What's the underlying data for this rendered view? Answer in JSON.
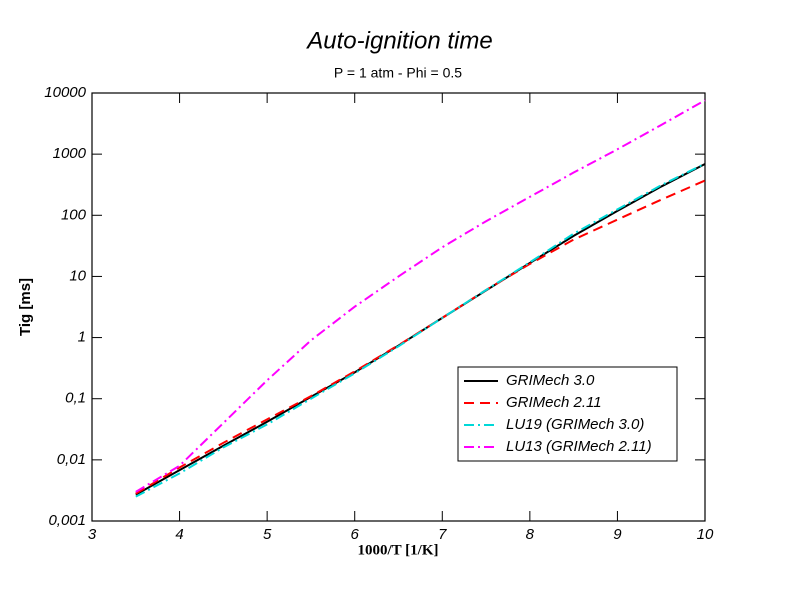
{
  "chart_data": {
    "type": "line",
    "title": "Auto-ignition time",
    "subtitle": "P = 1 atm - Phi = 0.5",
    "x_label": "1000/T [1/K]",
    "y_label": "Tig [ms]",
    "log_y": true,
    "legend": "lower right",
    "x": [
      3.5,
      4,
      4.5,
      5,
      5.5,
      6,
      6.5,
      7,
      7.5,
      8,
      8.5,
      9,
      9.5,
      10
    ],
    "series": [
      {
        "name": "GRIMech 3.0",
        "color": "#000000",
        "style": "solid",
        "values": [
          0.0027,
          0.0068,
          0.017,
          0.042,
          0.107,
          0.27,
          0.74,
          2.1,
          5.9,
          16.6,
          46,
          118,
          295,
          690
        ]
      },
      {
        "name": "GRIMech 2.11",
        "color": "#ff0000",
        "style": "dashed",
        "values": [
          0.0028,
          0.0075,
          0.019,
          0.046,
          0.11,
          0.28,
          0.75,
          2.1,
          6,
          16,
          40,
          85,
          180,
          370
        ]
      },
      {
        "name": "LU19 (GRIMech 3.0)",
        "color": "#00d8d8",
        "style": "dashdot",
        "values": [
          0.0025,
          0.006,
          0.016,
          0.038,
          0.1,
          0.26,
          0.72,
          2.1,
          6,
          17,
          50,
          125,
          310,
          700
        ]
      },
      {
        "name": "LU13 (GRIMech 2.11)",
        "color": "#ff00ff",
        "style": "dashdot",
        "values": [
          0.003,
          0.008,
          0.04,
          0.2,
          0.9,
          3.2,
          10,
          30,
          80,
          200,
          500,
          1200,
          3000,
          7600
        ]
      }
    ],
    "xlim": [
      3,
      10
    ],
    "xticks": [
      3,
      4,
      5,
      6,
      7,
      8,
      9,
      10
    ],
    "ylim": [
      0.001,
      10000
    ],
    "yticks": [
      {
        "value": 0.001,
        "label": "0,001"
      },
      {
        "value": 0.01,
        "label": "0,01"
      },
      {
        "value": 0.1,
        "label": "0,1"
      },
      1,
      10,
      100,
      1000,
      10000
    ]
  }
}
